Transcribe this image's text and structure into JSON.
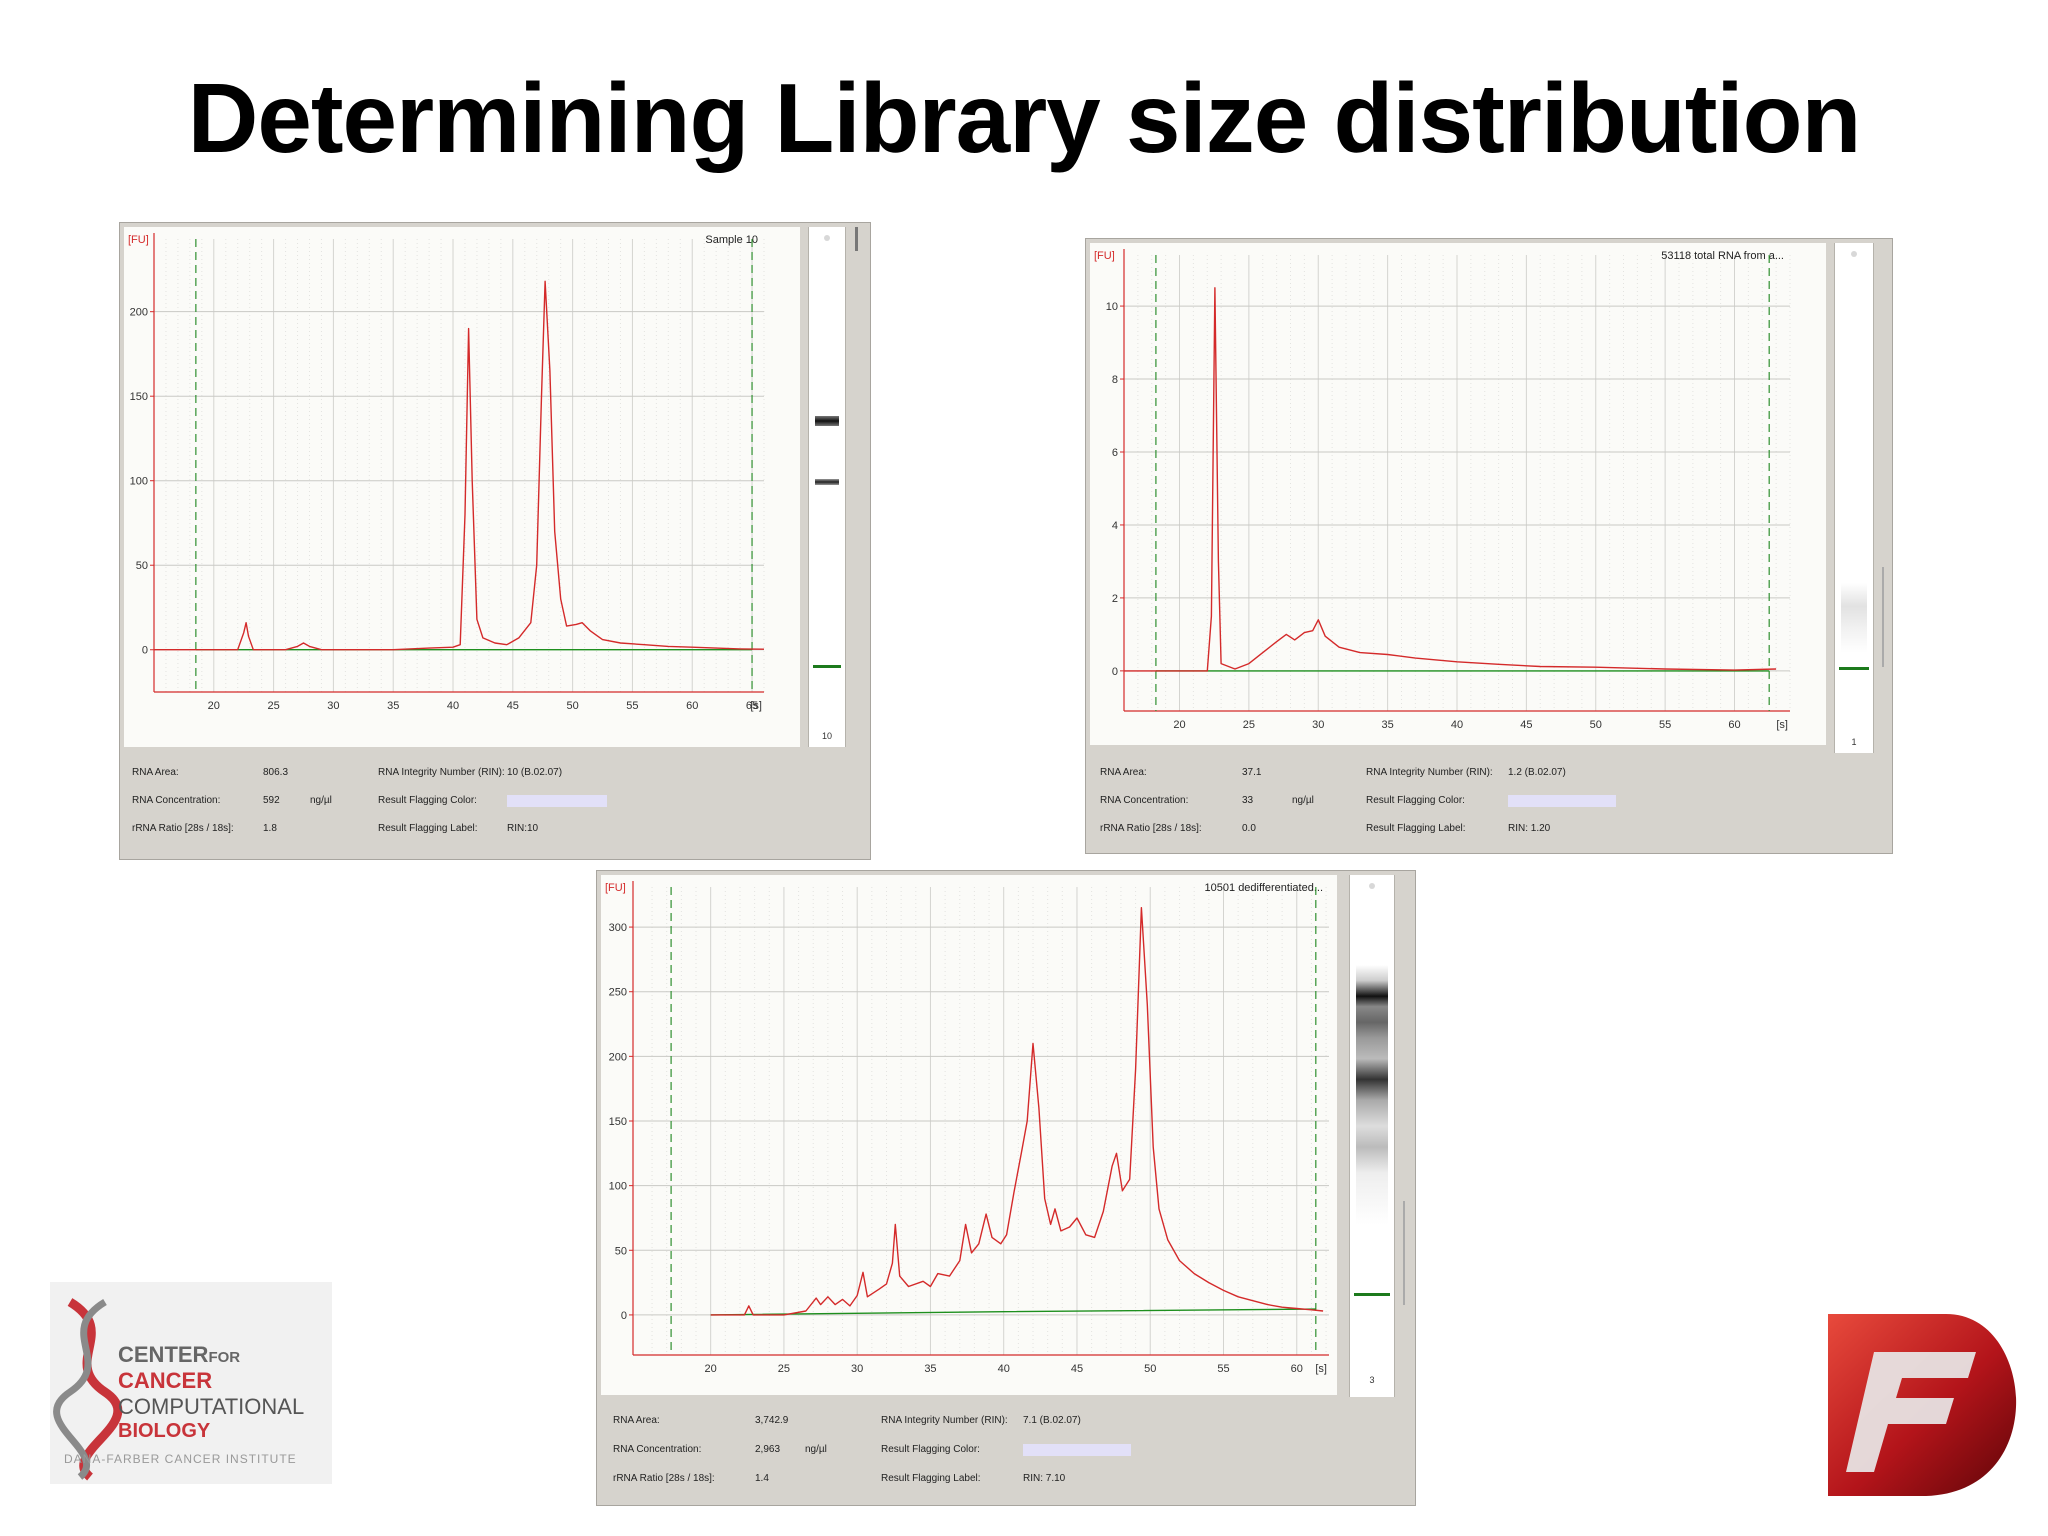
{
  "slide": {
    "title": "Determining Library size distribution"
  },
  "panels": [
    {
      "id": "a",
      "sample_label": "Sample 10",
      "y_unit": "[FU]",
      "x_unit": "[s]",
      "lane_number": "10",
      "info": {
        "rna_area_label": "RNA Area:",
        "rna_area_value": "806.3",
        "rna_conc_label": "RNA Concentration:",
        "rna_conc_value": "592",
        "rna_conc_unit": "ng/µl",
        "rrna_ratio_label": "rRNA Ratio [28s / 18s]:",
        "rrna_ratio_value": "1.8",
        "rin_label": "RNA Integrity Number (RIN):",
        "rin_value": "10  (B.02.07)",
        "flag_color_label": "Result Flagging Color:",
        "flag_label_label": "Result Flagging Label:",
        "flag_label_value": "RIN:10"
      }
    },
    {
      "id": "b",
      "sample_label": "53118 total RNA from a...",
      "y_unit": "[FU]",
      "x_unit": "[s]",
      "lane_number": "1",
      "info": {
        "rna_area_label": "RNA Area:",
        "rna_area_value": "37.1",
        "rna_conc_label": "RNA Concentration:",
        "rna_conc_value": "33",
        "rna_conc_unit": "ng/µl",
        "rrna_ratio_label": "rRNA Ratio [28s / 18s]:",
        "rrna_ratio_value": "0.0",
        "rin_label": "RNA Integrity Number (RIN):",
        "rin_value": "1.2  (B.02.07)",
        "flag_color_label": "Result Flagging Color:",
        "flag_label_label": "Result Flagging Label:",
        "flag_label_value": "RIN: 1.20"
      }
    },
    {
      "id": "c",
      "sample_label": "10501 dedifferentiated...",
      "y_unit": "[FU]",
      "x_unit": "[s]",
      "lane_number": "3",
      "info": {
        "rna_area_label": "RNA Area:",
        "rna_area_value": "3,742.9",
        "rna_conc_label": "RNA Concentration:",
        "rna_conc_value": "2,963",
        "rna_conc_unit": "ng/µl",
        "rrna_ratio_label": "rRNA Ratio [28s / 18s]:",
        "rrna_ratio_value": "1.4",
        "rin_label": "RNA Integrity Number (RIN):",
        "rin_value": "7.1  (B.02.07)",
        "flag_color_label": "Result Flagging Color:",
        "flag_label_label": "Result Flagging Label:",
        "flag_label_value": "RIN: 7.10"
      }
    }
  ],
  "logos": {
    "left": {
      "line1": "CENTER",
      "line1_small": "FOR",
      "line2": "CANCER",
      "line3": "COMPUTATIONAL",
      "line4": "BIOLOGY",
      "line5": "DANA-FARBER CANCER INSTITUTE"
    },
    "right": {
      "letter": "F"
    }
  },
  "chart_data": [
    {
      "type": "line",
      "title": "Sample 10",
      "ylabel": "[FU]",
      "xlabel": "[s]",
      "xlim": [
        15,
        66
      ],
      "ylim": [
        -25,
        243
      ],
      "xticks": [
        20,
        25,
        30,
        35,
        40,
        45,
        50,
        55,
        60,
        65
      ],
      "yticks": [
        0,
        50,
        100,
        150,
        200
      ],
      "grid": true,
      "markers": [
        18.5,
        65
      ],
      "baseline": {
        "color": "#1e8f1e",
        "points": [
          [
            18.5,
            0
          ],
          [
            65,
            0
          ]
        ]
      },
      "series": [
        {
          "color": "#d42a2a",
          "points": [
            [
              15,
              0
            ],
            [
              22.0,
              0
            ],
            [
              22.5,
              10
            ],
            [
              22.7,
              16
            ],
            [
              22.9,
              8
            ],
            [
              23.3,
              0
            ],
            [
              26,
              0
            ],
            [
              27,
              2
            ],
            [
              27.5,
              4
            ],
            [
              28,
              2
            ],
            [
              29,
              0
            ],
            [
              35,
              0
            ],
            [
              38,
              1
            ],
            [
              40,
              1.5
            ],
            [
              40.6,
              3
            ],
            [
              41.0,
              80
            ],
            [
              41.3,
              190
            ],
            [
              41.6,
              100
            ],
            [
              42.0,
              18
            ],
            [
              42.5,
              7
            ],
            [
              43.5,
              4
            ],
            [
              44.5,
              3
            ],
            [
              45.5,
              7
            ],
            [
              46.5,
              16
            ],
            [
              47.0,
              50
            ],
            [
              47.4,
              150
            ],
            [
              47.7,
              218
            ],
            [
              48.1,
              165
            ],
            [
              48.5,
              70
            ],
            [
              49.0,
              30
            ],
            [
              49.5,
              14
            ],
            [
              50.3,
              15
            ],
            [
              50.8,
              16
            ],
            [
              51.5,
              11
            ],
            [
              52.5,
              6
            ],
            [
              54,
              4
            ],
            [
              56,
              3
            ],
            [
              58,
              2
            ],
            [
              60,
              1.5
            ],
            [
              62,
              1
            ],
            [
              64,
              0.5
            ],
            [
              66,
              0.3
            ]
          ]
        }
      ]
    },
    {
      "type": "line",
      "title": "53118 total RNA from a...",
      "ylabel": "[FU]",
      "xlabel": "[s]",
      "xlim": [
        16,
        64
      ],
      "ylim": [
        -1.1,
        11.4
      ],
      "xticks": [
        20,
        25,
        30,
        35,
        40,
        45,
        50,
        55,
        60
      ],
      "yticks": [
        0,
        2,
        4,
        6,
        8,
        10
      ],
      "grid": true,
      "markers": [
        18.3,
        62.5
      ],
      "baseline": {
        "color": "#1e8f1e",
        "points": [
          [
            18.3,
            0
          ],
          [
            62.5,
            0
          ]
        ]
      },
      "series": [
        {
          "color": "#d42a2a",
          "points": [
            [
              16,
              0
            ],
            [
              22.0,
              0
            ],
            [
              22.3,
              1.5
            ],
            [
              22.55,
              10.5
            ],
            [
              22.8,
              3
            ],
            [
              23.0,
              0.2
            ],
            [
              24,
              0.05
            ],
            [
              25,
              0.2
            ],
            [
              26,
              0.5
            ],
            [
              27,
              0.8
            ],
            [
              27.7,
              1.0
            ],
            [
              28.3,
              0.85
            ],
            [
              29,
              1.05
            ],
            [
              29.6,
              1.1
            ],
            [
              30.0,
              1.4
            ],
            [
              30.5,
              0.95
            ],
            [
              31.5,
              0.65
            ],
            [
              33,
              0.5
            ],
            [
              35,
              0.45
            ],
            [
              37,
              0.35
            ],
            [
              40,
              0.25
            ],
            [
              43,
              0.18
            ],
            [
              46,
              0.12
            ],
            [
              50,
              0.1
            ],
            [
              55,
              0.05
            ],
            [
              60,
              0.02
            ],
            [
              63,
              0.05
            ]
          ]
        }
      ]
    },
    {
      "type": "line",
      "title": "10501 dedifferentiated...",
      "ylabel": "[FU]",
      "xlabel": "[s]",
      "xlim": [
        14.7,
        62.2
      ],
      "ylim": [
        -31,
        331
      ],
      "xticks": [
        20,
        25,
        30,
        35,
        40,
        45,
        50,
        55,
        60
      ],
      "yticks": [
        0,
        50,
        100,
        150,
        200,
        250,
        300
      ],
      "grid": true,
      "markers": [
        17.3,
        61.3
      ],
      "baseline": {
        "color": "#1e8f1e",
        "points": [
          [
            20,
            0
          ],
          [
            40,
            2.5
          ],
          [
            61.3,
            4.5
          ]
        ]
      },
      "series": [
        {
          "color": "#d42a2a",
          "points": [
            [
              20,
              0
            ],
            [
              22.3,
              0
            ],
            [
              22.6,
              7
            ],
            [
              22.9,
              0
            ],
            [
              25,
              0
            ],
            [
              26.5,
              3
            ],
            [
              27.2,
              13
            ],
            [
              27.5,
              8
            ],
            [
              28,
              14
            ],
            [
              28.5,
              8
            ],
            [
              29.0,
              12
            ],
            [
              29.5,
              7
            ],
            [
              30.0,
              15
            ],
            [
              30.4,
              33
            ],
            [
              30.7,
              14
            ],
            [
              31.5,
              20
            ],
            [
              32.0,
              24
            ],
            [
              32.4,
              40
            ],
            [
              32.6,
              70
            ],
            [
              32.9,
              30
            ],
            [
              33.5,
              22
            ],
            [
              34.5,
              26
            ],
            [
              35.0,
              22
            ],
            [
              35.5,
              32
            ],
            [
              36.3,
              30
            ],
            [
              37.0,
              42
            ],
            [
              37.4,
              70
            ],
            [
              37.8,
              48
            ],
            [
              38.3,
              55
            ],
            [
              38.8,
              78
            ],
            [
              39.2,
              60
            ],
            [
              39.8,
              55
            ],
            [
              40.2,
              62
            ],
            [
              40.7,
              95
            ],
            [
              41.2,
              125
            ],
            [
              41.6,
              150
            ],
            [
              42.0,
              210
            ],
            [
              42.4,
              160
            ],
            [
              42.8,
              90
            ],
            [
              43.2,
              70
            ],
            [
              43.5,
              82
            ],
            [
              43.9,
              65
            ],
            [
              44.5,
              68
            ],
            [
              45.0,
              75
            ],
            [
              45.6,
              62
            ],
            [
              46.2,
              60
            ],
            [
              46.8,
              80
            ],
            [
              47.4,
              115
            ],
            [
              47.7,
              125
            ],
            [
              48.1,
              96
            ],
            [
              48.6,
              105
            ],
            [
              49.0,
              190
            ],
            [
              49.4,
              315
            ],
            [
              49.8,
              240
            ],
            [
              50.2,
              130
            ],
            [
              50.6,
              82
            ],
            [
              51.2,
              58
            ],
            [
              52,
              42
            ],
            [
              53,
              32
            ],
            [
              54,
              25
            ],
            [
              55,
              19
            ],
            [
              56,
              14
            ],
            [
              57,
              11
            ],
            [
              58,
              8
            ],
            [
              59,
              6
            ],
            [
              60,
              5
            ],
            [
              61,
              4
            ],
            [
              61.8,
              3
            ]
          ]
        }
      ]
    }
  ]
}
